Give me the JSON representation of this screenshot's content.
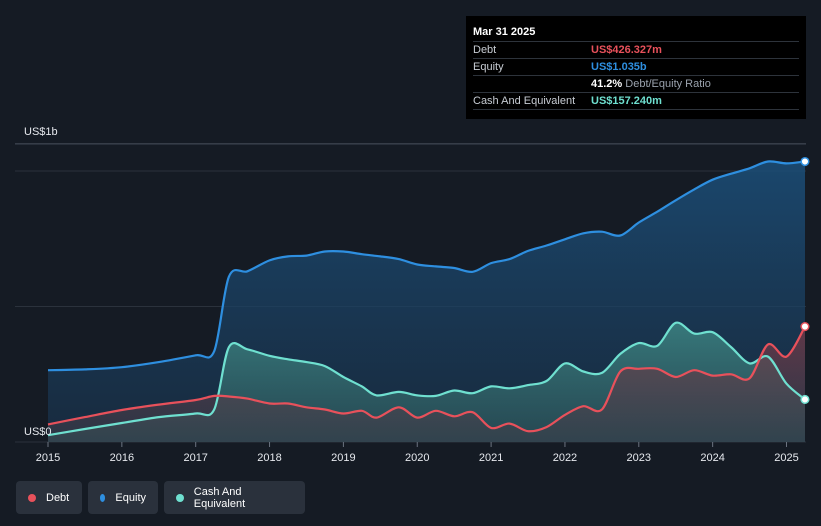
{
  "chart_data": {
    "type": "area",
    "ylabel_top": "US$1b",
    "ylabel_zero": "US$0",
    "ylim": [
      0,
      1.1
    ],
    "xlim": [
      2014.8,
      2025.27
    ],
    "x_ticks": [
      "2015",
      "2016",
      "2017",
      "2018",
      "2019",
      "2020",
      "2021",
      "2022",
      "2023",
      "2024",
      "2025"
    ],
    "series": [
      {
        "name": "Equity",
        "color": "#2e8fe0",
        "points": [
          [
            2015.0,
            0.265
          ],
          [
            2015.5,
            0.268
          ],
          [
            2016.0,
            0.276
          ],
          [
            2016.5,
            0.295
          ],
          [
            2017.0,
            0.32
          ],
          [
            2017.25,
            0.335
          ],
          [
            2017.45,
            0.61
          ],
          [
            2017.7,
            0.63
          ],
          [
            2018.0,
            0.67
          ],
          [
            2018.25,
            0.685
          ],
          [
            2018.5,
            0.688
          ],
          [
            2018.75,
            0.703
          ],
          [
            2019.0,
            0.703
          ],
          [
            2019.25,
            0.693
          ],
          [
            2019.5,
            0.685
          ],
          [
            2019.75,
            0.675
          ],
          [
            2020.0,
            0.655
          ],
          [
            2020.25,
            0.648
          ],
          [
            2020.5,
            0.642
          ],
          [
            2020.75,
            0.628
          ],
          [
            2021.0,
            0.66
          ],
          [
            2021.25,
            0.675
          ],
          [
            2021.5,
            0.705
          ],
          [
            2021.75,
            0.725
          ],
          [
            2022.0,
            0.748
          ],
          [
            2022.25,
            0.77
          ],
          [
            2022.5,
            0.776
          ],
          [
            2022.75,
            0.762
          ],
          [
            2023.0,
            0.81
          ],
          [
            2023.25,
            0.85
          ],
          [
            2023.5,
            0.892
          ],
          [
            2023.75,
            0.932
          ],
          [
            2024.0,
            0.968
          ],
          [
            2024.25,
            0.99
          ],
          [
            2024.5,
            1.01
          ],
          [
            2024.75,
            1.035
          ],
          [
            2025.0,
            1.028
          ],
          [
            2025.25,
            1.035
          ]
        ]
      },
      {
        "name": "Cash And Equivalent",
        "color": "#6fe0d0",
        "points": [
          [
            2015.0,
            0.025
          ],
          [
            2015.5,
            0.048
          ],
          [
            2016.0,
            0.07
          ],
          [
            2016.5,
            0.092
          ],
          [
            2017.0,
            0.105
          ],
          [
            2017.25,
            0.12
          ],
          [
            2017.45,
            0.35
          ],
          [
            2017.7,
            0.342
          ],
          [
            2018.0,
            0.318
          ],
          [
            2018.25,
            0.305
          ],
          [
            2018.5,
            0.295
          ],
          [
            2018.75,
            0.28
          ],
          [
            2019.0,
            0.24
          ],
          [
            2019.25,
            0.205
          ],
          [
            2019.45,
            0.172
          ],
          [
            2019.75,
            0.185
          ],
          [
            2020.0,
            0.172
          ],
          [
            2020.25,
            0.17
          ],
          [
            2020.5,
            0.19
          ],
          [
            2020.75,
            0.18
          ],
          [
            2021.0,
            0.205
          ],
          [
            2021.25,
            0.198
          ],
          [
            2021.5,
            0.21
          ],
          [
            2021.75,
            0.225
          ],
          [
            2022.0,
            0.29
          ],
          [
            2022.25,
            0.26
          ],
          [
            2022.5,
            0.255
          ],
          [
            2022.75,
            0.325
          ],
          [
            2023.0,
            0.365
          ],
          [
            2023.25,
            0.355
          ],
          [
            2023.5,
            0.44
          ],
          [
            2023.75,
            0.4
          ],
          [
            2024.0,
            0.405
          ],
          [
            2024.25,
            0.35
          ],
          [
            2024.5,
            0.29
          ],
          [
            2024.75,
            0.315
          ],
          [
            2025.0,
            0.215
          ],
          [
            2025.25,
            0.157
          ]
        ]
      },
      {
        "name": "Debt",
        "color": "#e8515b",
        "points": [
          [
            2015.0,
            0.065
          ],
          [
            2015.5,
            0.092
          ],
          [
            2016.0,
            0.118
          ],
          [
            2016.5,
            0.138
          ],
          [
            2017.0,
            0.155
          ],
          [
            2017.25,
            0.17
          ],
          [
            2017.45,
            0.168
          ],
          [
            2017.7,
            0.16
          ],
          [
            2018.0,
            0.142
          ],
          [
            2018.25,
            0.142
          ],
          [
            2018.5,
            0.128
          ],
          [
            2018.75,
            0.12
          ],
          [
            2019.0,
            0.105
          ],
          [
            2019.25,
            0.115
          ],
          [
            2019.45,
            0.09
          ],
          [
            2019.75,
            0.128
          ],
          [
            2020.0,
            0.09
          ],
          [
            2020.25,
            0.115
          ],
          [
            2020.5,
            0.095
          ],
          [
            2020.75,
            0.11
          ],
          [
            2021.0,
            0.052
          ],
          [
            2021.25,
            0.068
          ],
          [
            2021.5,
            0.04
          ],
          [
            2021.75,
            0.055
          ],
          [
            2022.0,
            0.1
          ],
          [
            2022.25,
            0.132
          ],
          [
            2022.5,
            0.12
          ],
          [
            2022.75,
            0.26
          ],
          [
            2023.0,
            0.27
          ],
          [
            2023.25,
            0.27
          ],
          [
            2023.5,
            0.24
          ],
          [
            2023.75,
            0.265
          ],
          [
            2024.0,
            0.245
          ],
          [
            2024.25,
            0.25
          ],
          [
            2024.5,
            0.235
          ],
          [
            2024.75,
            0.36
          ],
          [
            2025.0,
            0.315
          ],
          [
            2025.25,
            0.426
          ]
        ]
      }
    ]
  },
  "tooltip": {
    "date": "Mar 31 2025",
    "debt_label": "Debt",
    "debt_value": "US$426.327m",
    "equity_label": "Equity",
    "equity_value": "US$1.035b",
    "ratio_value": "41.2%",
    "ratio_label": "Debt/Equity Ratio",
    "cash_label": "Cash And Equivalent",
    "cash_value": "US$157.240m"
  },
  "legend": [
    {
      "label": "Debt",
      "color": "#e8515b"
    },
    {
      "label": "Equity",
      "color": "#2e8fe0"
    },
    {
      "label": "Cash And Equivalent",
      "color": "#6fe0d0"
    }
  ]
}
